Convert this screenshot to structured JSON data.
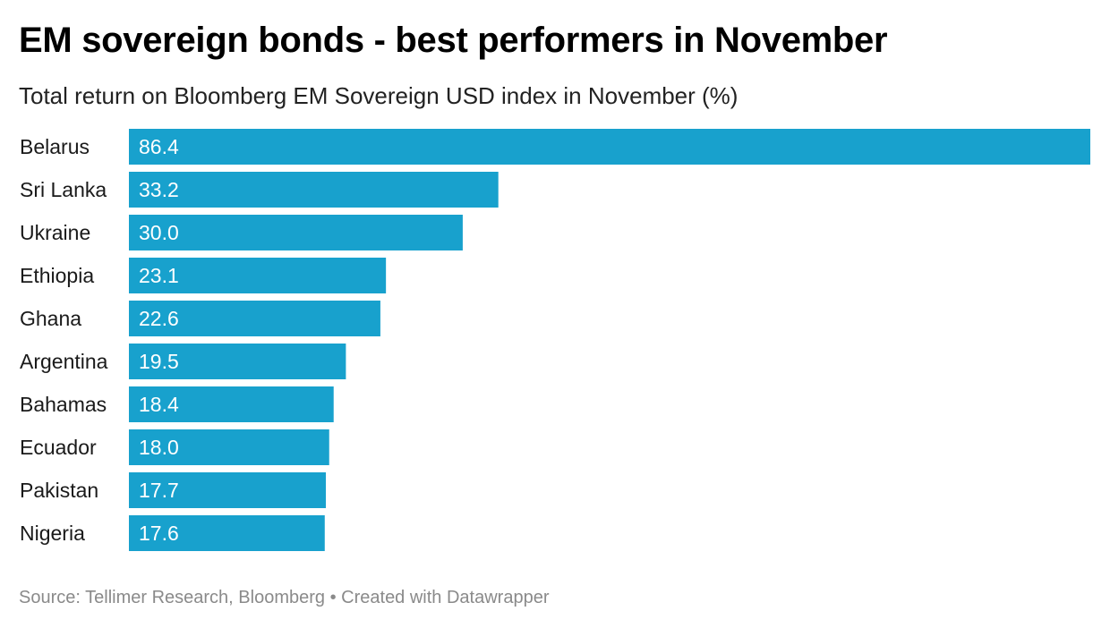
{
  "header": {
    "title": "EM sovereign bonds - best performers in November",
    "subtitle": "Total return on Bloomberg EM Sovereign USD index in November (%)"
  },
  "footer": {
    "source": "Source: Tellimer Research, Bloomberg",
    "separator": "•",
    "credit": "Created with Datawrapper"
  },
  "colors": {
    "bar": "#18a1cd"
  },
  "chart_data": {
    "type": "bar",
    "orientation": "horizontal",
    "title": "EM sovereign bonds - best performers in November",
    "subtitle": "Total return on Bloomberg EM Sovereign USD index in November (%)",
    "categories": [
      "Belarus",
      "Sri Lanka",
      "Ukraine",
      "Ethiopia",
      "Ghana",
      "Argentina",
      "Bahamas",
      "Ecuador",
      "Pakistan",
      "Nigeria"
    ],
    "values": [
      86.4,
      33.2,
      30.0,
      23.1,
      22.6,
      19.5,
      18.4,
      18.0,
      17.7,
      17.6
    ],
    "value_labels": [
      "86.4",
      "33.2",
      "30.0",
      "23.1",
      "22.6",
      "19.5",
      "18.4",
      "18.0",
      "17.7",
      "17.6"
    ],
    "xlim": [
      0,
      86.4
    ],
    "grid": false,
    "legend": "none"
  }
}
